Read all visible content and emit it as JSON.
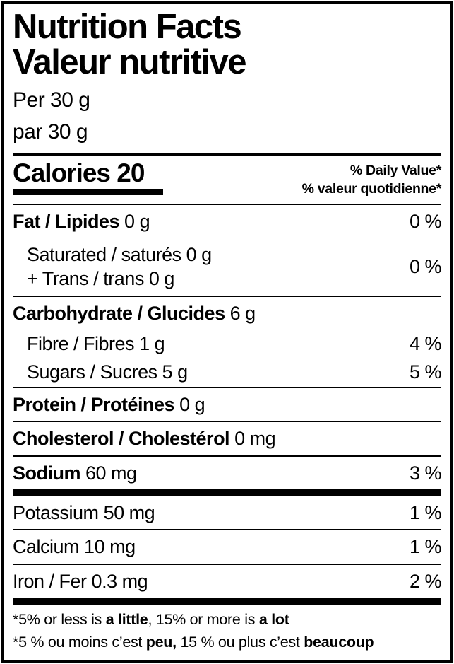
{
  "colors": {
    "ink": "#000000",
    "paper": "#ffffff"
  },
  "header": {
    "title_en": "Nutrition Facts",
    "title_fr": "Valeur nutritive",
    "serving_en": "Per 30 g",
    "serving_fr": "par 30 g"
  },
  "calories": {
    "label": "Calories",
    "value": "20"
  },
  "daily_value": {
    "header_en": "% Daily Value*",
    "header_fr": "% valeur quotidienne*"
  },
  "rows": {
    "fat": {
      "name": "Fat / Lipides",
      "amount": "0 g",
      "dv": "0 %"
    },
    "sat_trans": {
      "line1": "Saturated / saturés 0 g",
      "line2": "+ Trans / trans 0 g",
      "dv": "0 %"
    },
    "carbohydrate": {
      "name": "Carbohydrate / Glucides",
      "amount": "6 g"
    },
    "fibre": {
      "name": "Fibre / Fibres",
      "amount": "1 g",
      "dv": "4 %"
    },
    "sugars": {
      "name": "Sugars / Sucres",
      "amount": "5 g",
      "dv": "5 %"
    },
    "protein": {
      "name": "Protein / Protéines",
      "amount": "0 g"
    },
    "cholesterol": {
      "name": "Cholesterol / Cholestérol",
      "amount": "0 mg"
    },
    "sodium": {
      "name": "Sodium",
      "amount": "60 mg",
      "dv": "3 %"
    },
    "potassium": {
      "name": "Potassium",
      "amount": "50 mg",
      "dv": "1 %"
    },
    "calcium": {
      "name": "Calcium",
      "amount": "10 mg",
      "dv": "1 %"
    },
    "iron": {
      "name": "Iron / Fer",
      "amount": "0.3 mg",
      "dv": "2 %"
    }
  },
  "footnotes": {
    "en": {
      "pre": "*5% or less is ",
      "bold1": "a little",
      "mid": ", 15% or more is ",
      "bold2": "a lot"
    },
    "fr": {
      "pre": "*5 % ou moins c’est ",
      "bold1": "peu,",
      "mid": " 15 % ou plus c’est ",
      "bold2": "beaucoup"
    }
  }
}
